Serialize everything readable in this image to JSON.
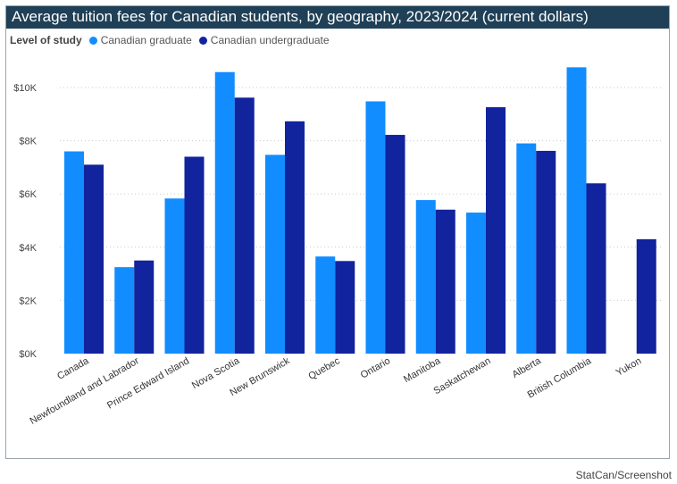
{
  "chart_data": {
    "type": "bar",
    "title": "Average tuition fees for Canadian students, by geography, 2023/2024 (current dollars)",
    "legend_title": "Level of study",
    "legend_placement": "top-left",
    "categories": [
      "Canada",
      "Newfoundland and Labrador",
      "Prince Edward Island",
      "Nova Scotia",
      "New Brunswick",
      "Quebec",
      "Ontario",
      "Manitoba",
      "Saskatchewan",
      "Alberta",
      "British Columbia",
      "Yukon"
    ],
    "series": [
      {
        "name": "Canadian graduate",
        "color": "#118dff",
        "values": [
          7600,
          3250,
          5830,
          10580,
          7470,
          3650,
          9480,
          5770,
          5300,
          7900,
          10760,
          null
        ]
      },
      {
        "name": "Canadian undergraduate",
        "color": "#12239e",
        "values": [
          7100,
          3500,
          7400,
          9620,
          8730,
          3480,
          8220,
          5410,
          9260,
          7620,
          6400,
          4300
        ]
      }
    ],
    "ylim": [
      0,
      11000
    ],
    "yticks": [
      0,
      2000,
      4000,
      6000,
      8000,
      10000
    ],
    "ytick_labels": [
      "$0K",
      "$2K",
      "$4K",
      "$6K",
      "$8K",
      "$10K"
    ],
    "xlabel": "",
    "ylabel": "",
    "grid": true
  },
  "credit": "StatCan/Screenshot"
}
